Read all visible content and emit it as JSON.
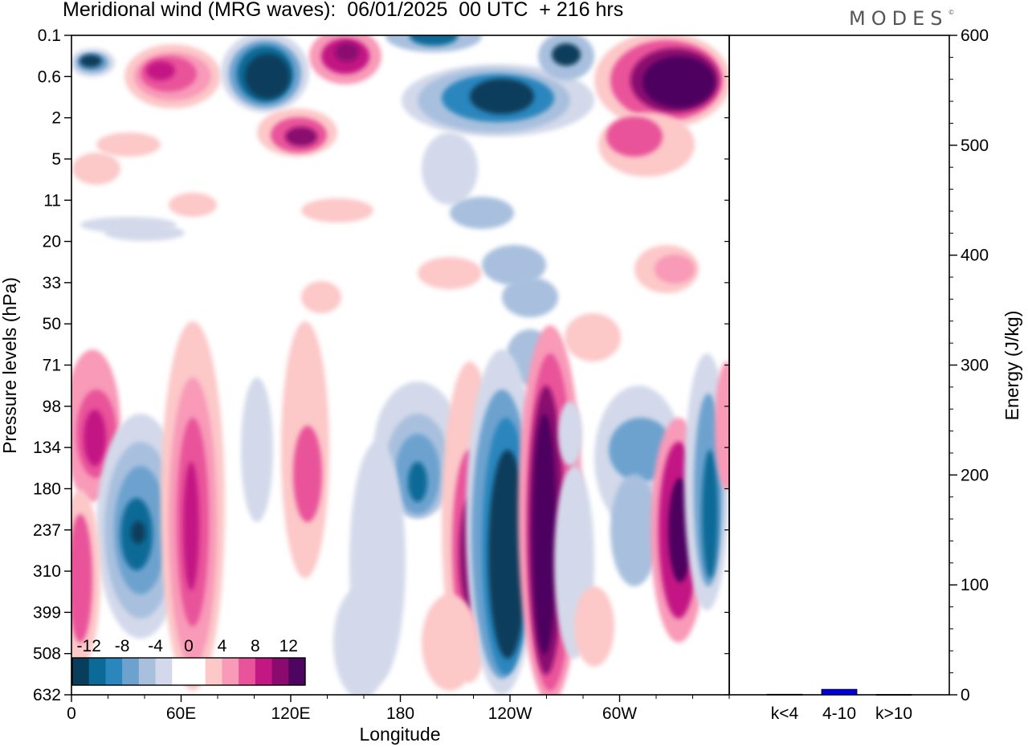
{
  "header": {
    "title": "Meridional wind (MRG waves):  06/01/2025  00 UTC  + 216 hrs",
    "logo": "MODES"
  },
  "chart_data": [
    {
      "type": "heatmap",
      "title": "Meridional wind (MRG waves):  06/01/2025  00 UTC  + 216 hrs",
      "xlabel": "Longitude",
      "ylabel": "Pressure levels (hPa)",
      "x_ticks": [
        "0",
        "60E",
        "120E",
        "180",
        "120W",
        "60W"
      ],
      "y_ticks": [
        "0.1",
        "0.6",
        "2",
        "5",
        "11",
        "20",
        "33",
        "50",
        "71",
        "98",
        "134",
        "180",
        "237",
        "310",
        "399",
        "508",
        "632"
      ],
      "colorbar": {
        "labels": [
          "-12",
          "-8",
          "-4",
          "0",
          "4",
          "8",
          "12"
        ],
        "colors": [
          "#083d5c",
          "#0b6a97",
          "#2a86bd",
          "#6da2cf",
          "#a8c0de",
          "#d3d9ea",
          "#ffffff",
          "#ffffff",
          "#fcc8c8",
          "#f89ab8",
          "#e9539a",
          "#c31784",
          "#8a0a6f",
          "#4e0560"
        ]
      }
    },
    {
      "type": "bar",
      "ylabel": "Energy (J/kg)",
      "ylim": [
        0,
        600
      ],
      "y_ticks": [
        "0",
        "100",
        "200",
        "300",
        "400",
        "500",
        "600"
      ],
      "categories": [
        "k<4",
        "4-10",
        "k>10"
      ],
      "values": [
        0.5,
        5,
        0.3
      ],
      "bar_colors": [
        "#000000",
        "#0000dd",
        "#000000"
      ]
    }
  ]
}
